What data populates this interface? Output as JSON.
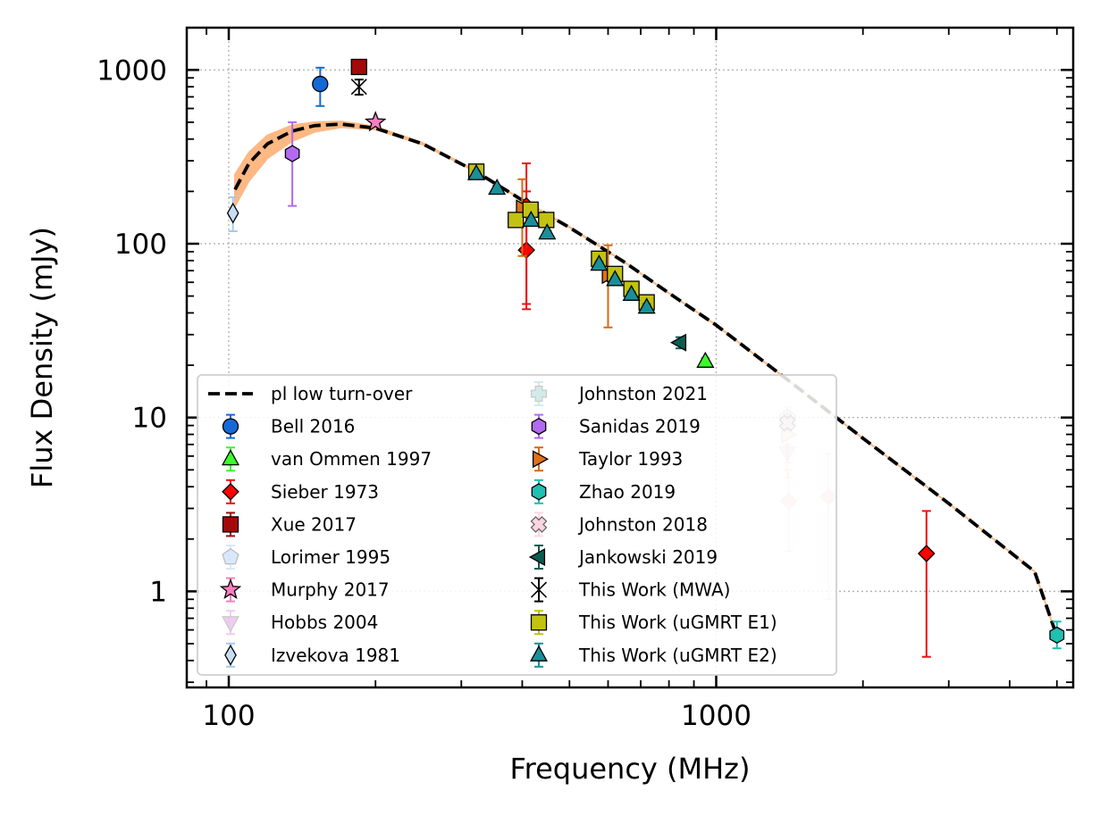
{
  "chart_data": {
    "type": "scatter",
    "title": "",
    "xlabel": "Frequency (MHz)",
    "ylabel": "Flux Density (mJy)",
    "xscale": "log",
    "yscale": "log",
    "xlim": [
      82,
      5400
    ],
    "ylim": [
      0.28,
      1750
    ],
    "xticks": [
      {
        "value": 100,
        "label": "100"
      },
      {
        "value": 1000,
        "label": "1000"
      }
    ],
    "yticks": [
      {
        "value": 1,
        "label": "1"
      },
      {
        "value": 10,
        "label": "10"
      },
      {
        "value": 100,
        "label": "100"
      },
      {
        "value": 1000,
        "label": "1000"
      }
    ],
    "grid": true,
    "legend_position": "lower-left",
    "model": {
      "name": "pl low turn-over",
      "color": "#000000",
      "band_color": "#fdb883",
      "x": [
        103,
        110,
        120,
        135,
        150,
        170,
        200,
        250,
        320,
        400,
        500,
        650,
        800,
        1000,
        1400,
        2000,
        3000,
        4500,
        5000
      ],
      "y": [
        205,
        290,
        375,
        445,
        478,
        488,
        462,
        375,
        262,
        178,
        124,
        78,
        52,
        34,
        16.5,
        7.6,
        3.2,
        1.3,
        0.55
      ],
      "band_lower": [
        165,
        230,
        310,
        390,
        440,
        468,
        455,
        372,
        261,
        178,
        124,
        78,
        52,
        34,
        16.5,
        7.6,
        3.2,
        1.3,
        0.55
      ],
      "band_upper": [
        250,
        335,
        420,
        480,
        500,
        505,
        472,
        380,
        264,
        179,
        125,
        78,
        52,
        34,
        16.5,
        7.6,
        3.2,
        1.3,
        0.55
      ]
    },
    "series": [
      {
        "name": "Bell 2016",
        "marker": "circle",
        "color": "#1569d6",
        "ecolor": "#1569d6",
        "alpha": 1,
        "points": [
          {
            "x": 154,
            "y": 830,
            "lo": 620,
            "hi": 1030
          }
        ]
      },
      {
        "name": "van Ommen 1997",
        "marker": "triangle-up",
        "color": "#3afc2a",
        "ecolor": "#3afc2a",
        "alpha": 1,
        "points": [
          {
            "x": 950,
            "y": 21,
            "lo": 20,
            "hi": 22
          }
        ]
      },
      {
        "name": "Sieber 1973",
        "marker": "diamond",
        "color": "#ff0000",
        "ecolor": "#ee1111",
        "alpha": 1,
        "points": [
          {
            "x": 408,
            "y": 92,
            "lo": 42,
            "hi": 200
          },
          {
            "x": 408,
            "y": 165,
            "lo": 45,
            "hi": 290
          },
          {
            "x": 2700,
            "y": 1.65,
            "lo": 0.42,
            "hi": 2.9
          }
        ]
      },
      {
        "name": "Sieber 1973",
        "marker": "diamond",
        "color": "#ff0000",
        "ecolor": "#ee1111",
        "alpha": 0.2,
        "legend": false,
        "points": [
          {
            "x": 1408,
            "y": 3.3,
            "lo": 1.7,
            "hi": 5.0
          },
          {
            "x": 1700,
            "y": 3.5,
            "lo": 0.9,
            "hi": 6.2
          }
        ]
      },
      {
        "name": "Xue 2017",
        "marker": "square",
        "color": "#a50a0a",
        "ecolor": "#a50a0a",
        "alpha": 1,
        "points": [
          {
            "x": 185,
            "y": 1040,
            "lo": 960,
            "hi": 1120
          }
        ]
      },
      {
        "name": "Lorimer 1995",
        "marker": "pentagon",
        "color": "#6aaaf0",
        "ecolor": "#6aaaf0",
        "alpha": 0.25,
        "points": [
          {
            "x": 1400,
            "y": 10,
            "lo": 9,
            "hi": 11
          }
        ]
      },
      {
        "name": "Murphy 2017",
        "marker": "star",
        "color": "#f77fbf",
        "ecolor": "#f77fbf",
        "alpha": 1,
        "points": [
          {
            "x": 200,
            "y": 500,
            "lo": 490,
            "hi": 510
          }
        ]
      },
      {
        "name": "Hobbs 2004",
        "marker": "triangle-down",
        "color": "#b309c0",
        "ecolor": "#b309c0",
        "alpha": 0.2,
        "points": [
          {
            "x": 1400,
            "y": 6.3,
            "lo": 5.5,
            "hi": 7.0
          }
        ]
      },
      {
        "name": "Izvekova 1981",
        "marker": "thin-diamond",
        "color": "#c7dcf5",
        "ecolor": "#a5c9ee",
        "alpha": 1,
        "points": [
          {
            "x": 102,
            "y": 150,
            "lo": 118,
            "hi": 185
          }
        ]
      },
      {
        "name": "Johnston 2021",
        "marker": "plus",
        "color": "#1f9e96",
        "ecolor": "#1f9e96",
        "alpha": 0.2,
        "points": [
          {
            "x": 1400,
            "y": 9.5,
            "lo": 8.5,
            "hi": 10.5
          }
        ]
      },
      {
        "name": "Sanidas 2019",
        "marker": "hexagon",
        "color": "#b26af0",
        "ecolor": "#b26af0",
        "alpha": 1,
        "points": [
          {
            "x": 135,
            "y": 330,
            "lo": 165,
            "hi": 500
          }
        ]
      },
      {
        "name": "Taylor 1993",
        "marker": "triangle-right",
        "color": "#e0711a",
        "ecolor": "#d66a14",
        "alpha": 1,
        "points": [
          {
            "x": 400,
            "y": 160,
            "lo": 85,
            "hi": 235
          },
          {
            "x": 600,
            "y": 66,
            "lo": 33,
            "hi": 98
          }
        ]
      },
      {
        "name": "Taylor 1993",
        "marker": "triangle-right",
        "color": "#e0711a",
        "ecolor": "#d66a14",
        "alpha": 0.25,
        "legend": false,
        "points": [
          {
            "x": 1400,
            "y": 8,
            "lo": 4.5,
            "hi": 11.5
          }
        ]
      },
      {
        "name": "Zhao 2019",
        "marker": "hexagon",
        "color": "#1fbfb2",
        "ecolor": "#1fbfb2",
        "alpha": 1,
        "points": [
          {
            "x": 5000,
            "y": 0.56,
            "lo": 0.47,
            "hi": 0.67
          }
        ]
      },
      {
        "name": "Johnston 2018",
        "marker": "x-filled",
        "color": "#f9b8cf",
        "ecolor": "#f9b8cf",
        "alpha": 0.6,
        "points": [
          {
            "x": 1400,
            "y": 9.3,
            "lo": 8.3,
            "hi": 10.3
          }
        ]
      },
      {
        "name": "Jankowski 2019",
        "marker": "triangle-left",
        "color": "#0d5c50",
        "ecolor": "#0d5c50",
        "alpha": 1,
        "points": [
          {
            "x": 843,
            "y": 27,
            "lo": 25,
            "hi": 29
          }
        ]
      },
      {
        "name": "This Work (MWA)",
        "marker": "x-thin",
        "color": "#000000",
        "ecolor": "#000000",
        "alpha": 1,
        "points": [
          {
            "x": 185,
            "y": 800,
            "lo": 720,
            "hi": 880
          }
        ]
      },
      {
        "name": "This Work (uGMRT E1)",
        "marker": "square",
        "color": "#c2c212",
        "ecolor": "#c2c212",
        "alpha": 1,
        "points": [
          {
            "x": 322,
            "y": 260,
            "lo": 250,
            "hi": 270
          },
          {
            "x": 388,
            "y": 137,
            "lo": 132,
            "hi": 142
          },
          {
            "x": 416,
            "y": 157,
            "lo": 151,
            "hi": 163
          },
          {
            "x": 448,
            "y": 137,
            "lo": 132,
            "hi": 142
          },
          {
            "x": 575,
            "y": 82,
            "lo": 79,
            "hi": 85
          },
          {
            "x": 620,
            "y": 67,
            "lo": 64,
            "hi": 70
          },
          {
            "x": 670,
            "y": 55,
            "lo": 53,
            "hi": 57
          },
          {
            "x": 720,
            "y": 46,
            "lo": 44,
            "hi": 48
          }
        ]
      },
      {
        "name": "This Work (uGMRT E2)",
        "marker": "triangle-up",
        "color": "#1b8f99",
        "ecolor": "#1b8f99",
        "alpha": 1,
        "points": [
          {
            "x": 322,
            "y": 252,
            "lo": 243,
            "hi": 261
          },
          {
            "x": 355,
            "y": 208,
            "lo": 200,
            "hi": 216
          },
          {
            "x": 417,
            "y": 136,
            "lo": 131,
            "hi": 141
          },
          {
            "x": 450,
            "y": 115,
            "lo": 111,
            "hi": 119
          },
          {
            "x": 575,
            "y": 76,
            "lo": 73,
            "hi": 79
          },
          {
            "x": 620,
            "y": 62,
            "lo": 60,
            "hi": 64
          },
          {
            "x": 670,
            "y": 51,
            "lo": 49,
            "hi": 53
          },
          {
            "x": 720,
            "y": 43,
            "lo": 41,
            "hi": 45
          }
        ]
      }
    ],
    "legend_columns": [
      [
        "pl low turn-over",
        "Bell 2016",
        "van Ommen 1997",
        "Sieber 1973",
        "Xue 2017",
        "Lorimer 1995",
        "Murphy 2017",
        "Hobbs 2004",
        "Izvekova 1981"
      ],
      [
        "Johnston 2021",
        "Sanidas 2019",
        "Taylor 1993",
        "Zhao 2019",
        "Johnston 2018",
        "Jankowski 2019",
        "This Work (MWA)",
        "This Work (uGMRT E1)",
        "This Work (uGMRT E2)"
      ]
    ]
  }
}
